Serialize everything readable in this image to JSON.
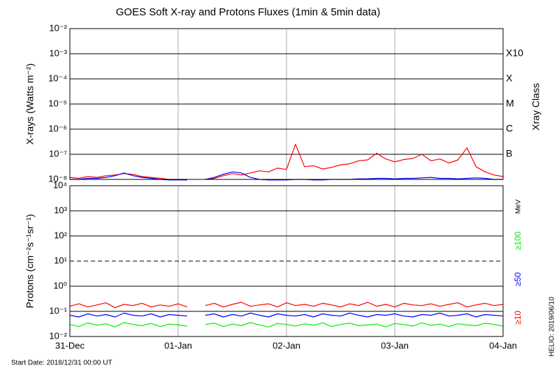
{
  "chart_data": [
    {
      "type": "line",
      "title": "GOES Soft X-ray and Protons Fluxes   (1min & 5min data)",
      "y_label": "X-rays (Watts m⁻²)",
      "log_scale": true,
      "grid": true,
      "ylim": [
        1e-08,
        0.01
      ],
      "yticks": [
        {
          "value": 0.01,
          "label": "10⁻²"
        },
        {
          "value": 0.001,
          "label": "10⁻³"
        },
        {
          "value": 0.0001,
          "label": "10⁻⁴"
        },
        {
          "value": 1e-05,
          "label": "10⁻⁵"
        },
        {
          "value": 1e-06,
          "label": "10⁻⁶"
        },
        {
          "value": 1e-07,
          "label": "10⁻⁷"
        },
        {
          "value": 1e-08,
          "label": "10⁻⁸"
        }
      ],
      "class_axis_label": "Xray Class",
      "classes": [
        {
          "value": 0.001,
          "label": "X10"
        },
        {
          "value": 0.0001,
          "label": "X"
        },
        {
          "value": 1e-05,
          "label": "M"
        },
        {
          "value": 1e-06,
          "label": "C"
        },
        {
          "value": 1e-07,
          "label": "B"
        }
      ],
      "xlim": [
        "2018-12-31 00:00",
        "2019-01-04 00:00"
      ],
      "x": [
        "2018-12-31 00:00",
        "2018-12-31 02:00",
        "2018-12-31 04:00",
        "2018-12-31 06:00",
        "2018-12-31 08:00",
        "2018-12-31 10:00",
        "2018-12-31 12:00",
        "2018-12-31 14:00",
        "2018-12-31 16:00",
        "2018-12-31 18:00",
        "2018-12-31 20:00",
        "2018-12-31 22:00",
        "2019-01-01 00:00",
        "2019-01-01 02:00",
        "2019-01-01 04:00",
        "2019-01-01 06:00",
        "2019-01-01 08:00",
        "2019-01-01 10:00",
        "2019-01-01 12:00",
        "2019-01-01 14:00",
        "2019-01-01 16:00",
        "2019-01-01 18:00",
        "2019-01-01 20:00",
        "2019-01-01 22:00",
        "2019-01-02 00:00",
        "2019-01-02 02:00",
        "2019-01-02 04:00",
        "2019-01-02 06:00",
        "2019-01-02 08:00",
        "2019-01-02 10:00",
        "2019-01-02 12:00",
        "2019-01-02 14:00",
        "2019-01-02 16:00",
        "2019-01-02 18:00",
        "2019-01-02 20:00",
        "2019-01-02 22:00",
        "2019-01-03 00:00",
        "2019-01-03 02:00",
        "2019-01-03 04:00",
        "2019-01-03 06:00",
        "2019-01-03 08:00",
        "2019-01-03 10:00",
        "2019-01-03 12:00",
        "2019-01-03 14:00",
        "2019-01-03 16:00",
        "2019-01-03 18:00",
        "2019-01-03 20:00",
        "2019-01-03 22:00",
        "2019-01-04 00:00"
      ],
      "series": [
        {
          "color": "#ff0000",
          "values": [
            1.2e-08,
            1.1e-08,
            1.3e-08,
            1.2e-08,
            1.4e-08,
            1.5e-08,
            1.7e-08,
            1.6e-08,
            1.3e-08,
            1.2e-08,
            1.1e-08,
            1e-08,
            1e-08,
            1e-08,
            null,
            1e-08,
            1.1e-08,
            1.4e-08,
            1.7e-08,
            1.5e-08,
            1.8e-08,
            2.2e-08,
            2e-08,
            2.8e-08,
            2.5e-08,
            2.5e-07,
            3.2e-08,
            3.5e-08,
            2.6e-08,
            3e-08,
            3.8e-08,
            4.2e-08,
            5.5e-08,
            6e-08,
            1.1e-07,
            6.5e-08,
            5e-08,
            6.2e-08,
            6.8e-08,
            1e-07,
            5.5e-08,
            6.5e-08,
            4.5e-08,
            6e-08,
            1.8e-07,
            3.2e-08,
            2e-08,
            1.5e-08,
            1.3e-08
          ]
        },
        {
          "color": "#0000ff",
          "values": [
            1e-08,
            1e-08,
            1.1e-08,
            1.1e-08,
            1.2e-08,
            1.4e-08,
            1.8e-08,
            1.4e-08,
            1.2e-08,
            1.1e-08,
            1e-08,
            9.5e-09,
            9.5e-09,
            9.5e-09,
            null,
            1e-08,
            1.2e-08,
            1.6e-08,
            2e-08,
            1.8e-08,
            1.2e-08,
            1e-08,
            9.5e-09,
            9.5e-09,
            9.5e-09,
            1e-08,
            1e-08,
            9.5e-09,
            9.5e-09,
            1e-08,
            1e-08,
            1e-08,
            1.05e-08,
            1.05e-08,
            1.1e-08,
            1.1e-08,
            1.05e-08,
            1.1e-08,
            1.1e-08,
            1.15e-08,
            1.2e-08,
            1.1e-08,
            1.1e-08,
            1.05e-08,
            1.1e-08,
            1.15e-08,
            1.1e-08,
            1e-08,
            1e-08
          ]
        }
      ]
    },
    {
      "type": "line",
      "y_label": "Protons (cm⁻²s⁻¹sr⁻¹)",
      "log_scale": true,
      "grid": true,
      "threshold": 10,
      "legend_unit": "MeV",
      "ylim": [
        0.01,
        10000.0
      ],
      "yticks": [
        {
          "value": 10000.0,
          "label": "10⁴"
        },
        {
          "value": 1000.0,
          "label": "10³"
        },
        {
          "value": 100.0,
          "label": "10²"
        },
        {
          "value": 10,
          "label": "10¹"
        },
        {
          "value": 1,
          "label": "10⁰"
        },
        {
          "value": 0.1,
          "label": "10⁻¹"
        },
        {
          "value": 0.01,
          "label": "10⁻²"
        }
      ],
      "xlim": [
        "2018-12-31 00:00",
        "2019-01-04 00:00"
      ],
      "xticks": [
        {
          "value": "2018-12-31 00:00",
          "label": "31-Dec"
        },
        {
          "value": "2019-01-01 00:00",
          "label": "01-Jan"
        },
        {
          "value": "2019-01-02 00:00",
          "label": "02-Jan"
        },
        {
          "value": "2019-01-03 00:00",
          "label": "03-Jan"
        },
        {
          "value": "2019-01-04 00:00",
          "label": "04-Jan"
        }
      ],
      "x": [
        "2018-12-31 00:00",
        "2018-12-31 02:00",
        "2018-12-31 04:00",
        "2018-12-31 06:00",
        "2018-12-31 08:00",
        "2018-12-31 10:00",
        "2018-12-31 12:00",
        "2018-12-31 14:00",
        "2018-12-31 16:00",
        "2018-12-31 18:00",
        "2018-12-31 20:00",
        "2018-12-31 22:00",
        "2019-01-01 00:00",
        "2019-01-01 02:00",
        "2019-01-01 04:00",
        "2019-01-01 06:00",
        "2019-01-01 08:00",
        "2019-01-01 10:00",
        "2019-01-01 12:00",
        "2019-01-01 14:00",
        "2019-01-01 16:00",
        "2019-01-01 18:00",
        "2019-01-01 20:00",
        "2019-01-01 22:00",
        "2019-01-02 00:00",
        "2019-01-02 02:00",
        "2019-01-02 04:00",
        "2019-01-02 06:00",
        "2019-01-02 08:00",
        "2019-01-02 10:00",
        "2019-01-02 12:00",
        "2019-01-02 14:00",
        "2019-01-02 16:00",
        "2019-01-02 18:00",
        "2019-01-02 20:00",
        "2019-01-02 22:00",
        "2019-01-03 00:00",
        "2019-01-03 02:00",
        "2019-01-03 04:00",
        "2019-01-03 06:00",
        "2019-01-03 08:00",
        "2019-01-03 10:00",
        "2019-01-03 12:00",
        "2019-01-03 14:00",
        "2019-01-03 16:00",
        "2019-01-03 18:00",
        "2019-01-03 20:00",
        "2019-01-03 22:00",
        "2019-01-04 00:00"
      ],
      "series": [
        {
          "name": "≥10",
          "color": "#ff0000",
          "values": [
            0.16,
            0.2,
            0.15,
            0.18,
            0.22,
            0.14,
            0.19,
            0.17,
            0.21,
            0.15,
            0.18,
            0.16,
            0.2,
            0.15,
            null,
            0.17,
            0.21,
            0.15,
            0.19,
            0.23,
            0.16,
            0.18,
            0.2,
            0.15,
            0.22,
            0.17,
            0.19,
            0.16,
            0.21,
            0.18,
            0.15,
            0.2,
            0.17,
            0.23,
            0.16,
            0.19,
            0.15,
            0.21,
            0.18,
            0.17,
            0.2,
            0.16,
            0.19,
            0.22,
            0.15,
            0.18,
            0.21,
            0.17,
            0.19
          ]
        },
        {
          "name": "≥50",
          "color": "#0000ff",
          "values": [
            0.07,
            0.06,
            0.08,
            0.065,
            0.075,
            0.06,
            0.085,
            0.07,
            0.065,
            0.08,
            0.06,
            0.075,
            0.07,
            0.065,
            null,
            0.07,
            0.08,
            0.06,
            0.075,
            0.065,
            0.085,
            0.07,
            0.06,
            0.08,
            0.07,
            0.065,
            0.075,
            0.06,
            0.08,
            0.07,
            0.065,
            0.085,
            0.07,
            0.06,
            0.075,
            0.07,
            0.08,
            0.065,
            0.06,
            0.075,
            0.07,
            0.085,
            0.065,
            0.07,
            0.08,
            0.06,
            0.075,
            0.07,
            0.065
          ]
        },
        {
          "name": "≥100",
          "color": "#00ee00",
          "values": [
            0.03,
            0.025,
            0.035,
            0.028,
            0.032,
            0.024,
            0.036,
            0.03,
            0.027,
            0.033,
            0.025,
            0.031,
            0.029,
            0.026,
            null,
            0.03,
            0.034,
            0.025,
            0.031,
            0.027,
            0.036,
            0.029,
            0.024,
            0.033,
            0.03,
            0.026,
            0.032,
            0.028,
            0.035,
            0.025,
            0.03,
            0.034,
            0.027,
            0.029,
            0.031,
            0.024,
            0.033,
            0.03,
            0.026,
            0.035,
            0.028,
            0.031,
            0.025,
            0.032,
            0.029,
            0.027,
            0.034,
            0.03,
            0.026
          ]
        }
      ]
    }
  ],
  "footer": {
    "start_date": "Start Date: 2018/12/31 00:00 UT",
    "helio": "HELIO: 2019/06/10"
  }
}
